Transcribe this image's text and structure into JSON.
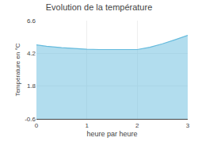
{
  "chart_data": {
    "type": "area",
    "title": "Evolution de la température",
    "xlabel": "heure par heure",
    "ylabel": "Température en °C",
    "x": [
      0,
      0.2,
      0.5,
      0.75,
      1.0,
      1.25,
      1.5,
      1.75,
      2.0,
      2.25,
      2.5,
      2.75,
      3.0
    ],
    "values": [
      4.82,
      4.72,
      4.62,
      4.55,
      4.5,
      4.48,
      4.48,
      4.48,
      4.48,
      4.65,
      4.9,
      5.2,
      5.52
    ],
    "color": "#66bbdd",
    "xlim": [
      0,
      3
    ],
    "ylim": [
      -0.6,
      6.6
    ],
    "xticks": [
      0,
      1,
      2,
      3
    ],
    "yticks": [
      -0.6,
      1.8,
      4.2,
      6.6
    ],
    "grid": true
  }
}
